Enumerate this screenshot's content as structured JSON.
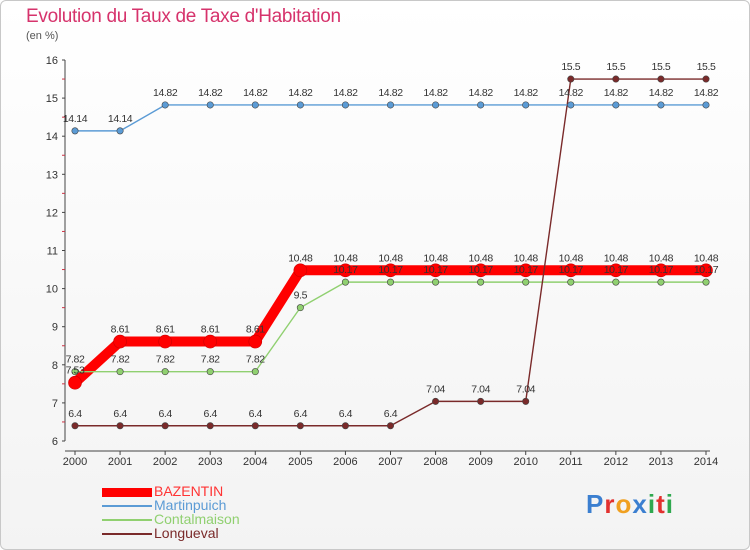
{
  "header": {
    "title": "Evolution du Taux de Taxe d'Habitation",
    "unit": "(en %)"
  },
  "logo": {
    "text": "Proxiti",
    "colors": [
      "#3b7fd0",
      "#e2312f",
      "#f0a020",
      "#3b7fd0",
      "#2fa84f",
      "#e2312f",
      "#2fa84f"
    ]
  },
  "chart_data": {
    "type": "line",
    "title": "Evolution du Taux de Taxe d'Habitation",
    "ylabel": "(en %)",
    "xlabel": "",
    "x": [
      "2000",
      "2001",
      "2002",
      "2003",
      "2004",
      "2005",
      "2006",
      "2007",
      "2008",
      "2009",
      "2010",
      "2011",
      "2012",
      "2013",
      "2014"
    ],
    "ylim": [
      6,
      16
    ],
    "yticks": [
      6,
      7,
      8,
      9,
      10,
      11,
      12,
      13,
      14,
      15,
      16
    ],
    "grid": false,
    "legend": "bottom-left",
    "series": [
      {
        "name": "BAZENTIN",
        "color": "#ff0000",
        "values": [
          7.53,
          8.61,
          8.61,
          8.61,
          8.61,
          10.48,
          10.48,
          10.48,
          10.48,
          10.48,
          10.48,
          10.48,
          10.48,
          10.48,
          10.48
        ],
        "labels": [
          "7.53",
          "8.61",
          "8.61",
          "8.61",
          "8.61",
          "10.48",
          "10.48",
          "10.48",
          "10.48",
          "10.48",
          "10.48",
          "10.48",
          "10.48",
          "10.48",
          "10.48"
        ]
      },
      {
        "name": "Martinpuich",
        "color": "#5b9bd5",
        "values": [
          14.14,
          14.14,
          14.82,
          14.82,
          14.82,
          14.82,
          14.82,
          14.82,
          14.82,
          14.82,
          14.82,
          14.82,
          14.82,
          14.82,
          14.82
        ],
        "labels": [
          "14.14",
          "14.14",
          "14.82",
          "14.82",
          "14.82",
          "14.82",
          "14.82",
          "14.82",
          "14.82",
          "14.82",
          "14.82",
          "14.82",
          "14.82",
          "14.82",
          "14.82"
        ]
      },
      {
        "name": "Contalmaison",
        "color": "#90d070",
        "values": [
          7.82,
          7.82,
          7.82,
          7.82,
          7.82,
          9.5,
          10.17,
          10.17,
          10.17,
          10.17,
          10.17,
          10.17,
          10.17,
          10.17,
          10.17
        ],
        "labels": [
          "7.82",
          "7.82",
          "7.82",
          "7.82",
          "7.82",
          "9.5",
          "10.17",
          "10.17",
          "10.17",
          "10.17",
          "10.17",
          "10.17",
          "10.17",
          "10.17",
          "10.17"
        ]
      },
      {
        "name": "Longueval",
        "color": "#7a2a2a",
        "values": [
          6.4,
          6.4,
          6.4,
          6.4,
          6.4,
          6.4,
          6.4,
          6.4,
          7.04,
          7.04,
          7.04,
          15.5,
          15.5,
          15.5,
          15.5
        ],
        "labels": [
          "6.4",
          "6.4",
          "6.4",
          "6.4",
          "6.4",
          "6.4",
          "6.4",
          "6.4",
          "7.04",
          "7.04",
          "7.04",
          "15.5",
          "15.5",
          "15.5",
          "15.5"
        ]
      }
    ]
  }
}
